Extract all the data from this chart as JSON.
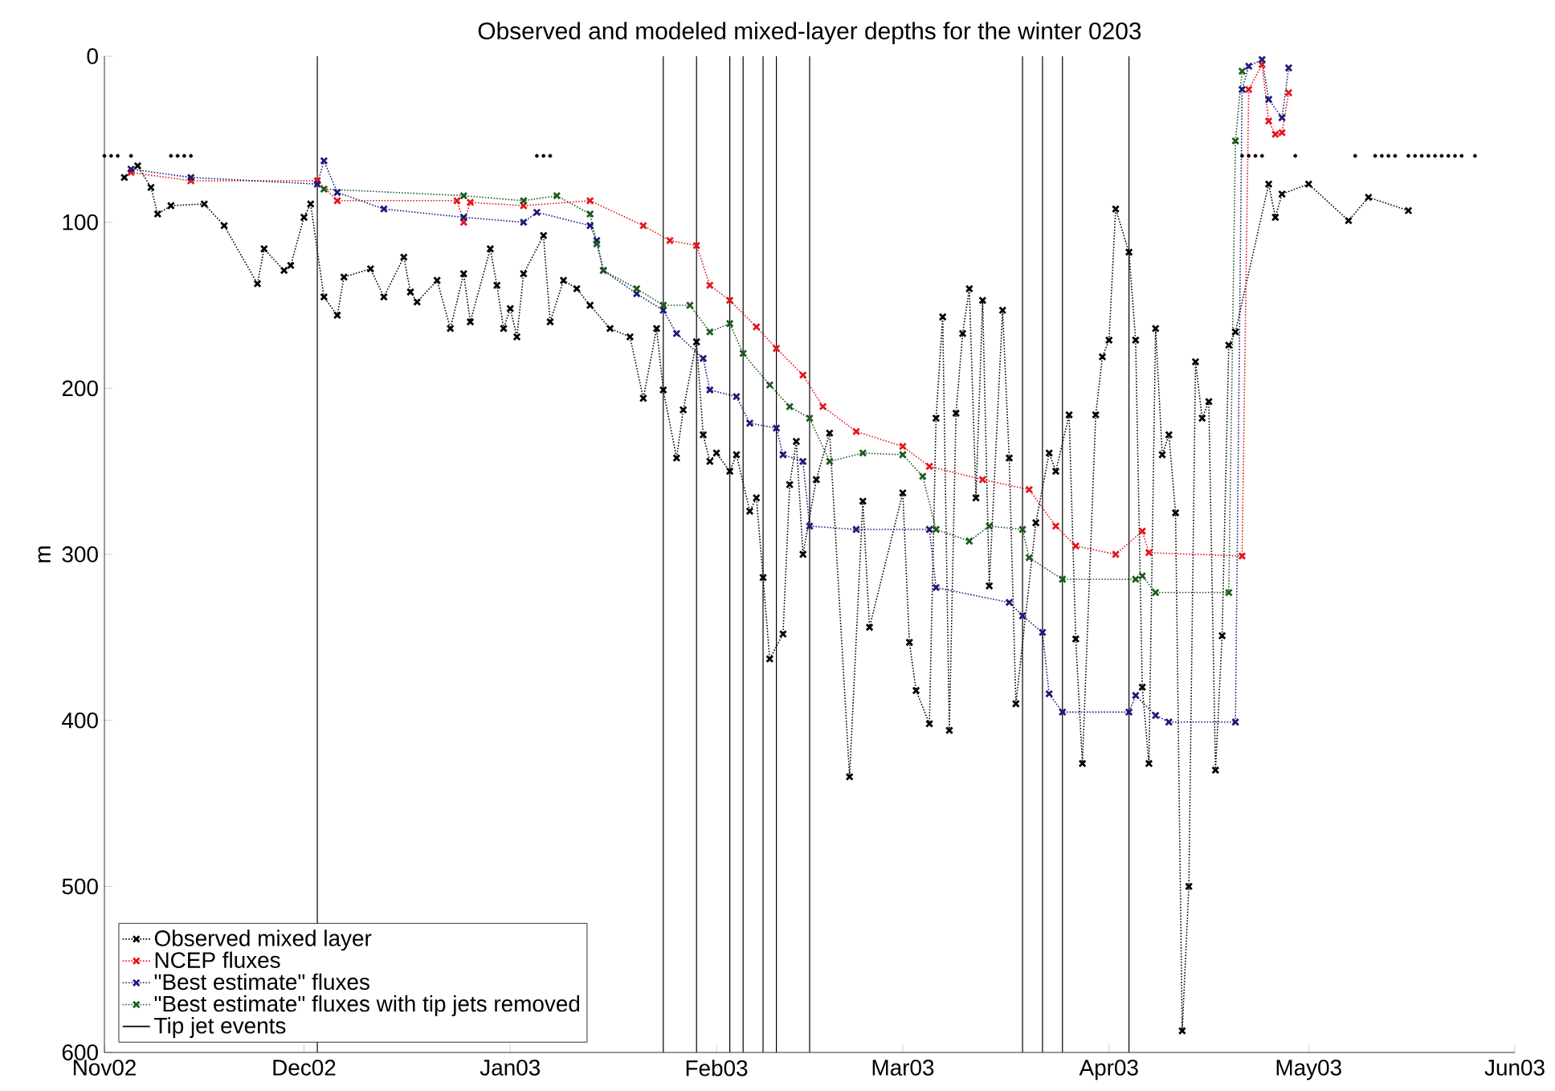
{
  "chart_data": {
    "type": "line",
    "title": "Observed and modeled mixed-layer depths for the winter 0203",
    "ylabel": "m",
    "xlim": [
      "2002-11-01",
      "2003-06-01"
    ],
    "xticks": [
      {
        "value": "2002-11-01",
        "label": "Nov02"
      },
      {
        "value": "2002-12-01",
        "label": "Dec02"
      },
      {
        "value": "2003-01-01",
        "label": "Jan03"
      },
      {
        "value": "2003-02-01",
        "label": "Feb03"
      },
      {
        "value": "2003-03-01",
        "label": "Mar03"
      },
      {
        "value": "2003-04-01",
        "label": "Apr03"
      },
      {
        "value": "2003-05-01",
        "label": "May03"
      },
      {
        "value": "2003-06-01",
        "label": "Jun03"
      }
    ],
    "ylim": [
      600,
      0
    ],
    "yticks": [
      0,
      100,
      200,
      300,
      400,
      500,
      600
    ],
    "grid": false,
    "legend": "bottom left",
    "series": [
      {
        "name": "Observed mixed layer",
        "color": "#000000",
        "marker": "cross",
        "line_style": "dotted",
        "x": [
          "2002-11-04",
          "2002-11-06",
          "2002-11-08",
          "2002-11-09",
          "2002-11-11",
          "2002-11-16",
          "2002-11-19",
          "2002-11-24",
          "2002-11-25",
          "2002-11-28",
          "2002-11-29",
          "2002-12-01",
          "2002-12-02",
          "2002-12-04",
          "2002-12-06",
          "2002-12-07",
          "2002-12-11",
          "2002-12-13",
          "2002-12-16",
          "2002-12-17",
          "2002-12-18",
          "2002-12-21",
          "2002-12-23",
          "2002-12-25",
          "2002-12-26",
          "2002-12-29",
          "2002-12-30",
          "2002-12-31",
          "2003-01-01",
          "2003-01-02",
          "2003-01-03",
          "2003-01-06",
          "2003-01-07",
          "2003-01-09",
          "2003-01-11",
          "2003-01-13",
          "2003-01-16",
          "2003-01-19",
          "2003-01-21",
          "2003-01-23",
          "2003-01-24",
          "2003-01-26",
          "2003-01-27",
          "2003-01-29",
          "2003-01-30",
          "2003-01-31",
          "2003-02-01",
          "2003-02-03",
          "2003-02-04",
          "2003-02-06",
          "2003-02-07",
          "2003-02-08",
          "2003-02-09",
          "2003-02-11",
          "2003-02-12",
          "2003-02-13",
          "2003-02-14",
          "2003-02-16",
          "2003-02-18",
          "2003-02-21",
          "2003-02-23",
          "2003-02-24",
          "2003-03-01",
          "2003-03-02",
          "2003-03-03",
          "2003-03-05",
          "2003-03-06",
          "2003-03-07",
          "2003-03-08",
          "2003-03-09",
          "2003-03-10",
          "2003-03-11",
          "2003-03-12",
          "2003-03-13",
          "2003-03-14",
          "2003-03-16",
          "2003-03-17",
          "2003-03-18",
          "2003-03-21",
          "2003-03-23",
          "2003-03-24",
          "2003-03-26",
          "2003-03-27",
          "2003-03-28",
          "2003-03-30",
          "2003-03-31",
          "2003-04-01",
          "2003-04-02",
          "2003-04-04",
          "2003-04-05",
          "2003-04-06",
          "2003-04-07",
          "2003-04-08",
          "2003-04-09",
          "2003-04-10",
          "2003-04-11",
          "2003-04-12",
          "2003-04-13",
          "2003-04-14",
          "2003-04-15",
          "2003-04-16",
          "2003-04-17",
          "2003-04-18",
          "2003-04-19",
          "2003-04-20",
          "2003-04-25",
          "2003-04-26",
          "2003-04-27",
          "2003-05-01",
          "2003-05-07",
          "2003-05-10",
          "2003-05-16"
        ],
        "values": [
          73,
          66,
          79,
          95,
          90,
          89,
          102,
          137,
          116,
          129,
          126,
          97,
          89,
          145,
          156,
          133,
          128,
          145,
          121,
          142,
          148,
          135,
          164,
          131,
          160,
          116,
          138,
          164,
          152,
          169,
          131,
          108,
          160,
          135,
          140,
          150,
          164,
          169,
          206,
          164,
          201,
          242,
          213,
          172,
          228,
          244,
          239,
          250,
          240,
          274,
          266,
          314,
          363,
          348,
          258,
          232,
          300,
          255,
          227,
          434,
          268,
          344,
          263,
          353,
          382,
          402,
          218,
          157,
          406,
          215,
          167,
          140,
          266,
          147,
          319,
          153,
          242,
          390,
          281,
          239,
          250,
          216,
          351,
          426,
          216,
          181,
          171,
          92,
          118,
          171,
          380,
          426,
          164,
          240,
          228,
          275,
          587,
          500,
          184,
          218,
          208,
          430,
          349,
          174,
          166,
          77,
          97,
          83,
          77,
          99,
          85,
          93
        ]
      },
      {
        "type": "scatter",
        "color": "#000000",
        "marker": "circle",
        "x": [
          "2002-11-01",
          "2002-11-02",
          "2002-11-03",
          "2002-11-05",
          "2002-11-11",
          "2002-11-12",
          "2002-11-13",
          "2002-11-14",
          "2003-01-05",
          "2003-01-06",
          "2003-01-07",
          "2003-04-21",
          "2003-04-22",
          "2003-04-23",
          "2003-04-24",
          "2003-04-29",
          "2003-05-08",
          "2003-05-11",
          "2003-05-12",
          "2003-05-13",
          "2003-05-14",
          "2003-05-16",
          "2003-05-17",
          "2003-05-18",
          "2003-05-19",
          "2003-05-20",
          "2003-05-21",
          "2003-05-22",
          "2003-05-23",
          "2003-05-24",
          "2003-05-26"
        ],
        "values": [
          60,
          60,
          60,
          60,
          60,
          60,
          60,
          60,
          60,
          60,
          60,
          60,
          60,
          60,
          60,
          60,
          60,
          60,
          60,
          60,
          60,
          60,
          60,
          60,
          60,
          60,
          60,
          60,
          60,
          60,
          60
        ]
      },
      {
        "name": "NCEP fluxes",
        "color": "#e3171d",
        "marker": "cross",
        "line_style": "dotted",
        "x": [
          "2002-11-05",
          "2002-11-14",
          "2002-12-03",
          "2002-12-06",
          "2002-12-24",
          "2002-12-25",
          "2002-12-26",
          "2003-01-03",
          "2003-01-13",
          "2003-01-21",
          "2003-01-25",
          "2003-01-29",
          "2003-01-31",
          "2003-02-03",
          "2003-02-07",
          "2003-02-10",
          "2003-02-14",
          "2003-02-17",
          "2003-02-22",
          "2003-03-01",
          "2003-03-05",
          "2003-03-13",
          "2003-03-20",
          "2003-03-24",
          "2003-03-27",
          "2003-04-02",
          "2003-04-06",
          "2003-04-07",
          "2003-04-21",
          "2003-04-22",
          "2003-04-24",
          "2003-04-25",
          "2003-04-26",
          "2003-04-27",
          "2003-04-28"
        ],
        "values": [
          70,
          75,
          75,
          87,
          87,
          100,
          88,
          90,
          87,
          102,
          111,
          114,
          138,
          147,
          163,
          176,
          192,
          211,
          226,
          235,
          247,
          255,
          261,
          283,
          295,
          300,
          286,
          299,
          301,
          20,
          5,
          39,
          47,
          46,
          22
        ]
      },
      {
        "name": "\"Best estimate\" fluxes",
        "color": "#1c1a7a",
        "marker": "cross",
        "line_style": "dotted",
        "x": [
          "2002-11-05",
          "2002-11-14",
          "2002-12-03",
          "2002-12-04",
          "2002-12-06",
          "2002-12-13",
          "2002-12-25",
          "2003-01-03",
          "2003-01-05",
          "2003-01-13",
          "2003-01-14",
          "2003-01-15",
          "2003-01-20",
          "2003-01-24",
          "2003-01-26",
          "2003-01-30",
          "2003-01-31",
          "2003-02-04",
          "2003-02-06",
          "2003-02-10",
          "2003-02-11",
          "2003-02-14",
          "2003-02-15",
          "2003-02-22",
          "2003-03-05",
          "2003-03-06",
          "2003-03-17",
          "2003-03-19",
          "2003-03-22",
          "2003-03-23",
          "2003-03-25",
          "2003-04-04",
          "2003-04-05",
          "2003-04-08",
          "2003-04-10",
          "2003-04-20",
          "2003-04-21",
          "2003-04-22",
          "2003-04-24",
          "2003-04-25",
          "2003-04-27",
          "2003-04-28"
        ],
        "values": [
          68,
          73,
          77,
          63,
          82,
          92,
          97,
          100,
          94,
          102,
          111,
          129,
          143,
          153,
          167,
          182,
          201,
          205,
          221,
          224,
          240,
          244,
          283,
          285,
          285,
          320,
          329,
          337,
          347,
          384,
          395,
          395,
          385,
          397,
          401,
          401,
          20,
          6,
          2,
          26,
          37,
          7
        ]
      },
      {
        "name": "\"Best estimate\" fluxes with tip jets removed",
        "color": "#1e5a1e",
        "marker": "cross",
        "line_style": "dotted",
        "x": [
          "2002-12-04",
          "2002-12-25",
          "2003-01-03",
          "2003-01-08",
          "2003-01-13",
          "2003-01-14",
          "2003-01-15",
          "2003-01-20",
          "2003-01-24",
          "2003-01-28",
          "2003-01-31",
          "2003-02-03",
          "2003-02-05",
          "2003-02-09",
          "2003-02-12",
          "2003-02-15",
          "2003-02-18",
          "2003-02-23",
          "2003-03-01",
          "2003-03-04",
          "2003-03-06",
          "2003-03-11",
          "2003-03-14",
          "2003-03-19",
          "2003-03-20",
          "2003-03-25",
          "2003-04-05",
          "2003-04-06",
          "2003-04-08",
          "2003-04-19",
          "2003-04-20",
          "2003-04-21"
        ],
        "values": [
          80,
          84,
          87,
          84,
          95,
          113,
          129,
          140,
          150,
          150,
          166,
          161,
          179,
          198,
          211,
          218,
          244,
          239,
          240,
          253,
          285,
          292,
          283,
          285,
          302,
          315,
          315,
          313,
          323,
          323,
          51,
          9
        ]
      }
    ],
    "ref_lines": [
      {
        "axis": "x",
        "value": "2002-12-03",
        "label": "Tip jet events",
        "color": "#000000"
      },
      {
        "axis": "x",
        "value": "2003-01-24",
        "color": "#000000"
      },
      {
        "axis": "x",
        "value": "2003-01-29",
        "color": "#000000"
      },
      {
        "axis": "x",
        "value": "2003-02-03",
        "color": "#000000"
      },
      {
        "axis": "x",
        "value": "2003-02-05",
        "color": "#000000"
      },
      {
        "axis": "x",
        "value": "2003-02-08",
        "color": "#000000"
      },
      {
        "axis": "x",
        "value": "2003-02-10",
        "color": "#000000"
      },
      {
        "axis": "x",
        "value": "2003-02-15",
        "color": "#000000"
      },
      {
        "axis": "x",
        "value": "2003-03-19",
        "color": "#000000"
      },
      {
        "axis": "x",
        "value": "2003-03-22",
        "color": "#000000"
      },
      {
        "axis": "x",
        "value": "2003-03-25",
        "color": "#000000"
      },
      {
        "axis": "x",
        "value": "2003-04-04",
        "color": "#000000"
      }
    ]
  }
}
